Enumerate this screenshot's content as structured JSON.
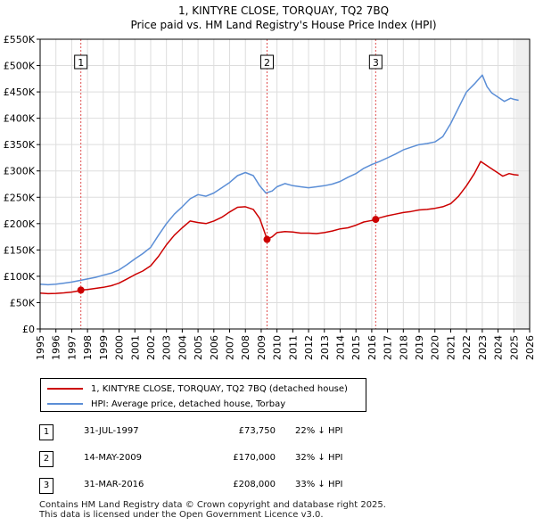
{
  "chart_data": {
    "type": "line",
    "title": "1, KINTYRE CLOSE, TORQUAY, TQ2 7BQ",
    "subtitle": "Price paid vs. HM Land Registry's House Price Index (HPI)",
    "xlim": [
      1995,
      2026
    ],
    "ylim": [
      0,
      550000
    ],
    "y_ticks": [
      0,
      50000,
      100000,
      150000,
      200000,
      250000,
      300000,
      350000,
      400000,
      450000,
      500000,
      550000
    ],
    "y_tick_labels": [
      "£0",
      "£50K",
      "£100K",
      "£150K",
      "£200K",
      "£250K",
      "£300K",
      "£350K",
      "£400K",
      "£450K",
      "£500K",
      "£550K"
    ],
    "x_ticks": [
      1995,
      1996,
      1997,
      1998,
      1999,
      2000,
      2001,
      2002,
      2003,
      2004,
      2005,
      2006,
      2007,
      2008,
      2009,
      2010,
      2011,
      2012,
      2013,
      2014,
      2015,
      2016,
      2017,
      2018,
      2019,
      2020,
      2021,
      2022,
      2023,
      2024,
      2025,
      2026
    ],
    "x_tick_labels": [
      "1995",
      "1996",
      "1997",
      "1998",
      "1999",
      "2000",
      "2001",
      "2002",
      "2003",
      "2004",
      "2005",
      "2006",
      "2007",
      "2008",
      "2009",
      "2010",
      "2011",
      "2012",
      "2013",
      "2014",
      "2015",
      "2016",
      "2017",
      "2018",
      "2019",
      "2020",
      "2021",
      "2022",
      "2023",
      "2024",
      "2025",
      "2026"
    ],
    "grid": true,
    "forecast_from": 2025.1,
    "series": [
      {
        "name": "1, KINTYRE CLOSE, TORQUAY, TQ2 7BQ (detached house)",
        "color": "#cc0000",
        "x": [
          1995.0,
          1995.5,
          1996.0,
          1996.5,
          1997.0,
          1997.3,
          1997.58,
          1998.0,
          1998.5,
          1999.0,
          1999.5,
          2000.0,
          2000.5,
          2001.0,
          2001.5,
          2002.0,
          2002.5,
          2003.0,
          2003.5,
          2004.0,
          2004.5,
          2005.0,
          2005.5,
          2006.0,
          2006.5,
          2007.0,
          2007.5,
          2008.0,
          2008.5,
          2008.9,
          2009.2,
          2009.37,
          2009.7,
          2010.0,
          2010.5,
          2011.0,
          2011.5,
          2012.0,
          2012.5,
          2013.0,
          2013.5,
          2014.0,
          2014.5,
          2015.0,
          2015.5,
          2016.0,
          2016.25,
          2016.5,
          2017.0,
          2017.5,
          2018.0,
          2018.5,
          2019.0,
          2019.5,
          2020.0,
          2020.5,
          2021.0,
          2021.5,
          2022.0,
          2022.5,
          2022.9,
          2023.2,
          2023.5,
          2023.9,
          2024.3,
          2024.7,
          2025.0,
          2025.3
        ],
        "values": [
          68000,
          67000,
          67500,
          68500,
          70000,
          71500,
          73750,
          75000,
          77000,
          79000,
          82000,
          87000,
          95000,
          103000,
          110000,
          120000,
          138000,
          160000,
          178000,
          192000,
          205000,
          202000,
          200000,
          205000,
          212000,
          222000,
          231000,
          232000,
          227000,
          210000,
          185000,
          170000,
          175000,
          183000,
          185000,
          184000,
          182000,
          182000,
          181000,
          183000,
          186000,
          190000,
          192000,
          197000,
          203000,
          206000,
          208000,
          211000,
          215000,
          218000,
          221000,
          223000,
          226000,
          227000,
          229000,
          232000,
          238000,
          252000,
          272000,
          295000,
          318000,
          312000,
          306000,
          298000,
          290000,
          295000,
          293000,
          292000
        ]
      },
      {
        "name": "HPI: Average price, detached house, Torbay",
        "color": "#5b8ed6",
        "x": [
          1995.0,
          1995.5,
          1996.0,
          1996.5,
          1997.0,
          1997.5,
          1998.0,
          1998.5,
          1999.0,
          1999.5,
          2000.0,
          2000.5,
          2001.0,
          2001.5,
          2002.0,
          2002.5,
          2003.0,
          2003.5,
          2004.0,
          2004.5,
          2005.0,
          2005.5,
          2006.0,
          2006.5,
          2007.0,
          2007.5,
          2008.0,
          2008.5,
          2008.9,
          2009.3,
          2009.7,
          2010.0,
          2010.5,
          2011.0,
          2011.5,
          2012.0,
          2012.5,
          2013.0,
          2013.5,
          2014.0,
          2014.5,
          2015.0,
          2015.5,
          2016.0,
          2016.5,
          2017.0,
          2017.5,
          2018.0,
          2018.5,
          2019.0,
          2019.5,
          2020.0,
          2020.5,
          2021.0,
          2021.5,
          2022.0,
          2022.5,
          2022.8,
          2023.0,
          2023.3,
          2023.6,
          2024.0,
          2024.4,
          2024.8,
          2025.0,
          2025.3
        ],
        "values": [
          85000,
          84000,
          85000,
          87000,
          89000,
          92000,
          95000,
          98000,
          102000,
          106000,
          112000,
          122000,
          133000,
          143000,
          155000,
          178000,
          200000,
          218000,
          232000,
          247000,
          255000,
          252000,
          258000,
          268000,
          278000,
          291000,
          297000,
          291000,
          272000,
          258000,
          262000,
          270000,
          276000,
          272000,
          270000,
          268000,
          270000,
          272000,
          275000,
          280000,
          288000,
          295000,
          305000,
          312000,
          318000,
          325000,
          332000,
          340000,
          345000,
          350000,
          352000,
          355000,
          365000,
          390000,
          420000,
          450000,
          465000,
          475000,
          482000,
          460000,
          448000,
          440000,
          432000,
          438000,
          436000,
          434000
        ]
      }
    ],
    "sales": [
      {
        "label": "1",
        "x": 1997.58,
        "value": 73750
      },
      {
        "label": "2",
        "x": 2009.37,
        "value": 170000
      },
      {
        "label": "3",
        "x": 2016.25,
        "value": 208000
      }
    ]
  },
  "legend": {
    "property_label": "1, KINTYRE CLOSE, TORQUAY, TQ2 7BQ (detached house)",
    "hpi_label": "HPI: Average price, detached house, Torbay"
  },
  "sales_table": [
    {
      "num": "1",
      "date": "31-JUL-1997",
      "price": "£73,750",
      "hpi": "22% ↓ HPI"
    },
    {
      "num": "2",
      "date": "14-MAY-2009",
      "price": "£170,000",
      "hpi": "32% ↓ HPI"
    },
    {
      "num": "3",
      "date": "31-MAR-2016",
      "price": "£208,000",
      "hpi": "33% ↓ HPI"
    }
  ],
  "footer": {
    "line1": "Contains HM Land Registry data © Crown copyright and database right 2025.",
    "line2": "This data is licensed under the Open Government Licence v3.0."
  }
}
